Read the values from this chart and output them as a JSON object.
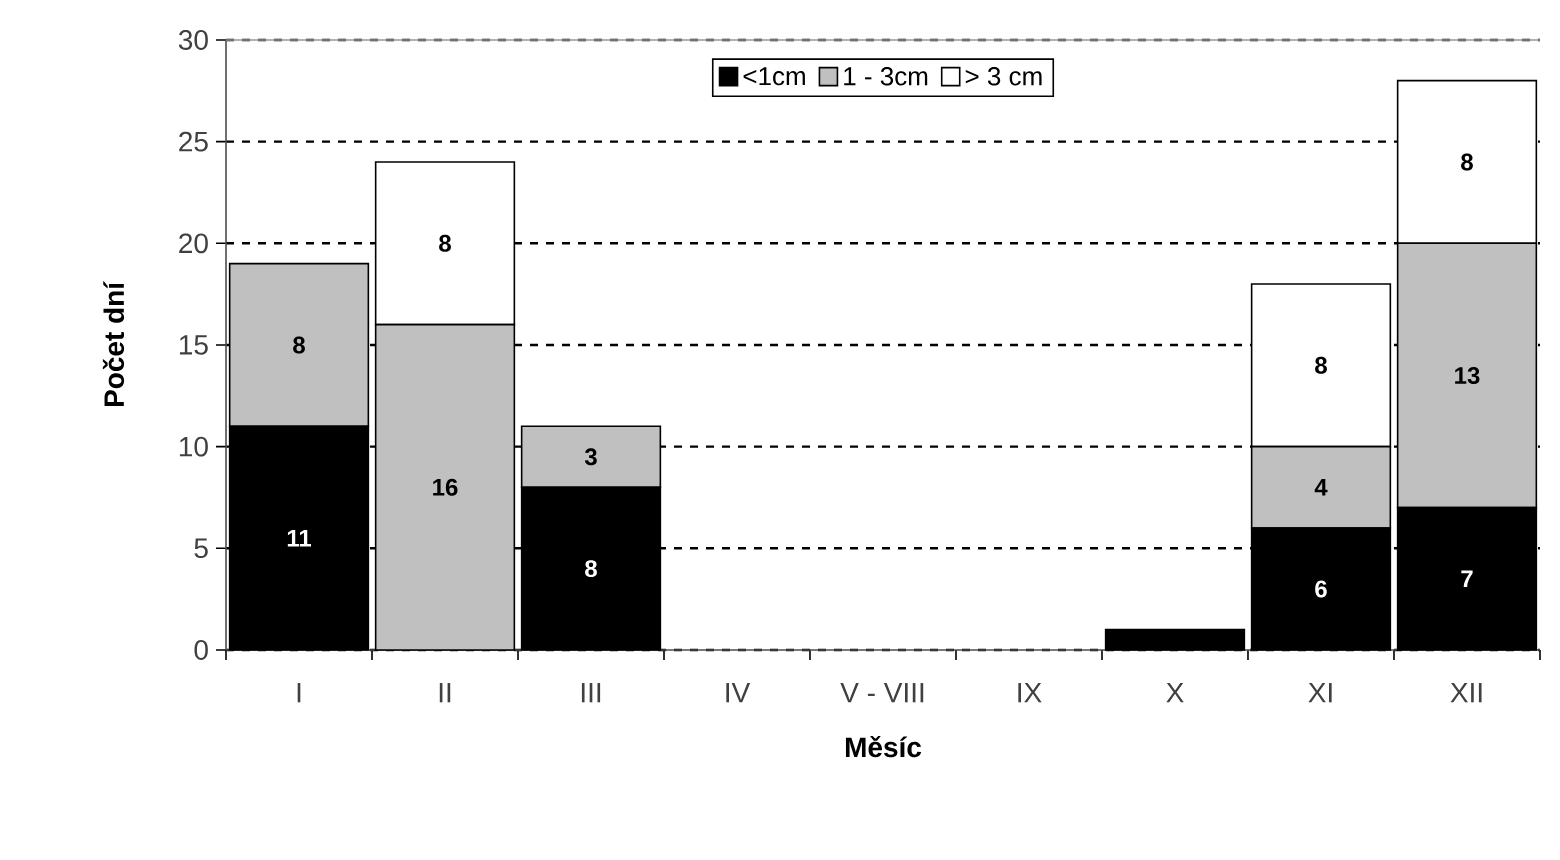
{
  "chart_data": {
    "type": "bar",
    "stacked": true,
    "xlabel": "Měsíc",
    "ylabel": "Počet dní",
    "categories": [
      "I",
      "II",
      "III",
      "IV",
      "V - VIII",
      "IX",
      "X",
      "XI",
      "XII"
    ],
    "series": [
      {
        "name": "<1cm",
        "color": "#000000",
        "values": [
          11,
          0,
          8,
          0,
          0,
          0,
          1,
          6,
          7
        ],
        "value_labels": [
          "11",
          null,
          "8",
          null,
          null,
          null,
          null,
          "6",
          "7"
        ]
      },
      {
        "name": "1 - 3cm",
        "color": "#c0c0c0",
        "values": [
          8,
          16,
          3,
          0,
          0,
          0,
          0,
          4,
          13
        ],
        "value_labels": [
          "8",
          "16",
          "3",
          null,
          null,
          null,
          null,
          "4",
          "13"
        ]
      },
      {
        "name": "> 3 cm",
        "color": "#ffffff",
        "values": [
          0,
          8,
          0,
          0,
          0,
          0,
          0,
          8,
          8
        ],
        "value_labels": [
          null,
          "8",
          null,
          null,
          null,
          null,
          null,
          "8",
          "8"
        ]
      }
    ],
    "ylim": [
      0,
      30
    ],
    "yticks": [
      0,
      5,
      10,
      15,
      20,
      25,
      30
    ],
    "grid": "y",
    "legend": "top"
  }
}
